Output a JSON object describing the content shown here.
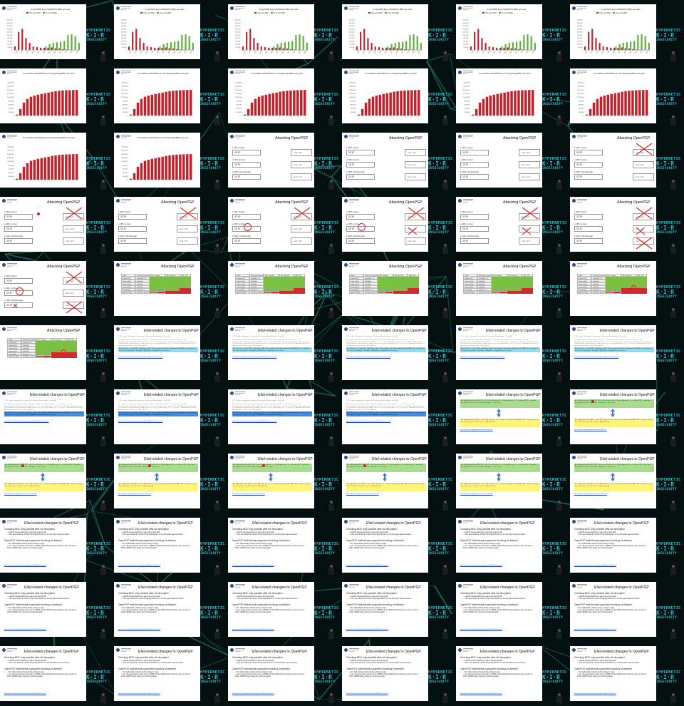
{
  "sidebar": {
    "line1": "HYPERNETIC",
    "line2": "K·I·R",
    "line3": "INSECURITY"
  },
  "university": "ruhr-universität bochum",
  "colors": {
    "background": "#04100f",
    "net_lines": "#1f7f73",
    "bar_red": "#c0222a",
    "bar_green": "#5fae3a",
    "highlight_cyan": "#8fdcf0",
    "highlight_yellow": "#fff37a",
    "table_green": "#7bc044",
    "table_red": "#d12a2a",
    "mark_red": "#d62020"
  },
  "chart_new_keys": {
    "title": "# new PGP keys with/without MDC per year",
    "legend": [
      "Keys w/o MDC",
      "Keys with MDC"
    ],
    "years": [
      "1995",
      "1997",
      "1999",
      "2001",
      "2003",
      "2005",
      "2007",
      "2009",
      "2011",
      "2013",
      "2015",
      "2017"
    ],
    "y_ticks": [
      "500,000",
      "450,000",
      "400,000",
      "350,000",
      "300,000",
      "250,000",
      "200,000",
      "150,000",
      "100,000",
      "50,000",
      "0"
    ],
    "red_values": [
      60000,
      300000,
      350000,
      200000,
      120000,
      60000,
      50000,
      40000,
      40000,
      35000,
      45000,
      30000,
      25000,
      15000,
      10000,
      8000,
      6000,
      5000
    ],
    "green_values": [
      0,
      0,
      0,
      0,
      0,
      0,
      0,
      10000,
      60000,
      100000,
      120000,
      130000,
      140000,
      150000,
      250000,
      260000,
      230000,
      120000
    ]
  },
  "chart_cumulative": {
    "title": "# cumulative with PGP keys not supporting MDCs per year",
    "y_ticks": [
      "1,800,000",
      "1,600,000",
      "1,400,000",
      "1,200,000",
      "1,000,000",
      "800,000",
      "600,000",
      "400,000",
      "200,000",
      "0"
    ],
    "values": [
      60000,
      360000,
      710000,
      910000,
      1030000,
      1090000,
      1140000,
      1180000,
      1220000,
      1255000,
      1300000,
      1330000,
      1355000,
      1370000,
      1380000,
      1388000,
      1394000,
      1399000
    ]
  },
  "attacking": {
    "title": "Attacking OpenPGP",
    "rows": [
      {
        "label": "1. MDC stripped",
        "code": "SEIP",
        "right": ""
      },
      {
        "label": "2. MDC incorrect",
        "code": "SEIP",
        "right": ""
      },
      {
        "label": "3. SEIP->SE downgrade",
        "code": "SEIP",
        "right": ""
      }
    ],
    "right_box_text": "ansd rest",
    "table_headers": [
      "Client",
      "Plugin (w/o/ version)",
      "MDC stripped",
      "MDC incorrect",
      "SEIP->SE"
    ],
    "table_rows": [
      [
        "Outlook 2007",
        "GpG4Win 2.3.2"
      ],
      [
        "Outlook 2010",
        "GpG4Win"
      ],
      [
        "Outlook 2013",
        "GpG4Win"
      ],
      [
        "Outlook 2016",
        "GpG4Win"
      ],
      [
        "Thunderbird",
        "Enigmail 1.9"
      ],
      [
        "Apple Mail (MK)",
        "GPGTools 2018.01"
      ]
    ],
    "vulnerable_label": "vulnerable"
  },
  "efail": {
    "title": "Efail-related changes to OpenPGP",
    "spec_heading": "5.13. Sym. Encrypted Integrity Protected Data Packet (Tag 18)",
    "spec_text": "The Symmetrically Encrypted Integrity Protected Data packet is a variant of the Symmetrically Encrypted Data packet. It is a new feature created for OpenPGP that addresses the problem of detecting a modification to encrypted data. It is used in combination with a Modification Detection Code packet.",
    "spec_highlight": "Any failure of the MDC indicates that the message has been modified and MUST be treated as a security problem. Failures SHOULD be reported to the user.",
    "link1": "https://tools.ietf.org/html/draft-ietf-openpgp-rfc4880bis-05#section-5.13",
    "box_top": "An implementation MUST NOT emit the plaintext of a message with an invalid MDC, and when decryption fails the whole message is rejected.",
    "box_bottom": "An implementation MUST treat MDC failure as a security problem and MUST NOT release any of the cleartext to the user or application.",
    "link2": "https://github.com/gpg/gnupg/commit/e15a91be37e",
    "bullet1": "Checking MDC only possible after full decryption",
    "sub1a": "GnuPG streams plaintext to app during decryption",
    "sub1b": "Only when finished, GnuPG prints flag whether or not decryption was successful",
    "bullet2": "OpenPGP draft already supported chunking of plaintext",
    "sub2a": "Pro: Authenticate chunks before giving it to app",
    "sub2b": "Con: Recommended chunk size is 128KB but OpenPGP implementations may not want to buffer 128KB before doing any streaming again",
    "link3": "https://tools.ietf.org/html/draft-ietf-openpgp-rfc4880bis-05#page-42"
  }
}
